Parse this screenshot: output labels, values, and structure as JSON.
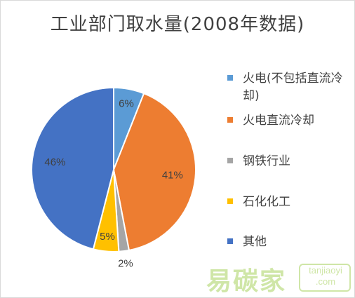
{
  "chart_data": {
    "type": "pie",
    "title": "工业部门取水量(2008年数据)",
    "slices": [
      {
        "label": "火电(不包括直流冷却)",
        "value": 6,
        "value_label": "6%",
        "color": "#5b9bd5"
      },
      {
        "label": "火电直流冷却",
        "value": 41,
        "value_label": "41%",
        "color": "#ed7d31"
      },
      {
        "label": "钢铁行业",
        "value": 2,
        "value_label": "2%",
        "color": "#a5a5a5"
      },
      {
        "label": "石化化工",
        "value": 5,
        "value_label": "5%",
        "color": "#ffc000"
      },
      {
        "label": "其他",
        "value": 46,
        "value_label": "46%",
        "color": "#4472c4"
      }
    ],
    "legend_position": "right",
    "start_angle": "12 o'clock, clockwise"
  },
  "watermark": {
    "text": "易碳家",
    "badge_line1": "tanjiaoyi",
    "badge_line2": ".com",
    "color": "#cfe6a7"
  }
}
